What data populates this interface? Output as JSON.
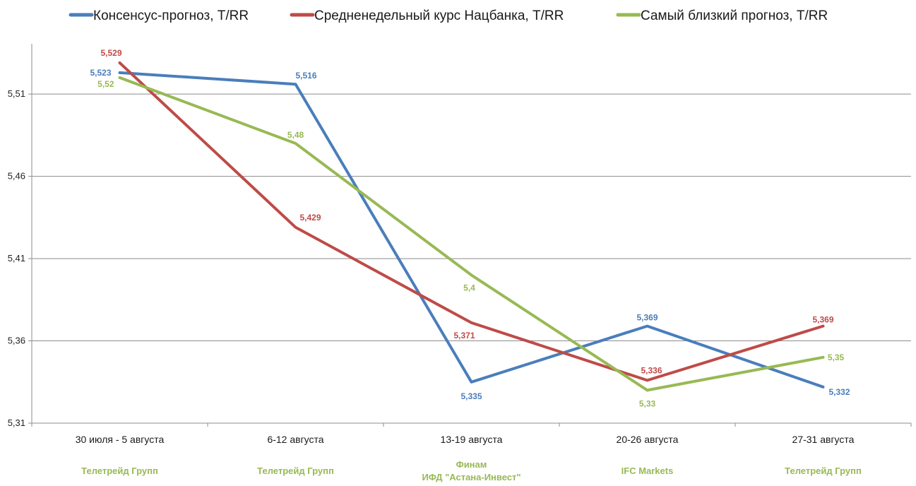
{
  "chart_data": {
    "type": "line",
    "title": "",
    "xlabel": "",
    "ylabel": "",
    "ylim": [
      5.31,
      5.55
    ],
    "yticks": [
      "5,31",
      "5,36",
      "5,41",
      "5,46",
      "5,51"
    ],
    "ytick_values": [
      5.31,
      5.36,
      5.41,
      5.46,
      5.51
    ],
    "grid": "horizontal",
    "legend_position": "top",
    "categories": [
      "30 июля - 5 августа",
      "6-12 августа",
      "13-19 августа",
      "20-26 августа",
      "27-31 августа"
    ],
    "sources": [
      [
        "Телетрейд Групп"
      ],
      [
        "Телетрейд Групп"
      ],
      [
        "Финам",
        "ИФД \"Астана-Инвест\""
      ],
      [
        "IFC Markets"
      ],
      [
        "Телетрейд Групп"
      ]
    ],
    "series": [
      {
        "name": "Консенсус-прогноз, T/RR",
        "color": "#4a7ebb",
        "values": [
          5.523,
          5.516,
          5.335,
          5.369,
          5.332
        ],
        "labels": [
          "5,523",
          "5,516",
          "5,335",
          "5,369",
          "5,332"
        ]
      },
      {
        "name": "Средненедельный  курс Нацбанка, T/RR",
        "color": "#be4b48",
        "values": [
          5.529,
          5.429,
          5.371,
          5.336,
          5.369
        ],
        "labels": [
          "5,529",
          "5,429",
          "5,371",
          "5,336",
          "5,369"
        ]
      },
      {
        "name": "Самый близкий прогноз, T/RR",
        "color": "#98b954",
        "values": [
          5.52,
          5.48,
          5.4,
          5.33,
          5.35
        ],
        "labels": [
          "5,52",
          "5,48",
          "5,4",
          "5,33",
          "5,35"
        ]
      }
    ],
    "source_color": "#98b954"
  }
}
